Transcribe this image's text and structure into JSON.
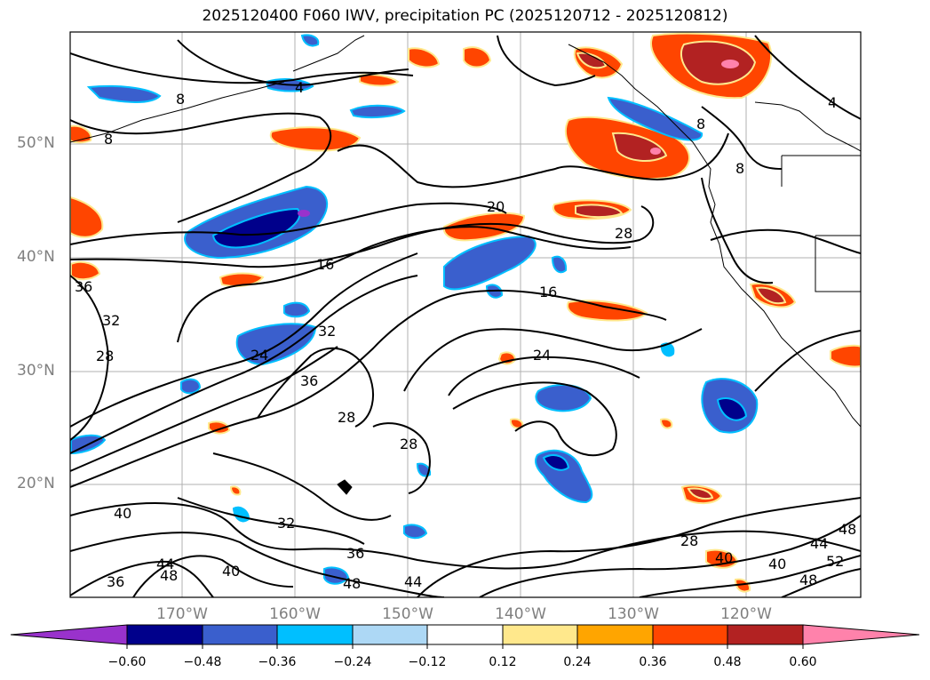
{
  "title": "2025120400 F060 IWV, precipitation PC (2025120712 - 2025120812)",
  "map": {
    "lat_labels": [
      "50°N",
      "40°N",
      "30°N",
      "20°N"
    ],
    "lon_labels": [
      "170°W",
      "160°W",
      "150°W",
      "140°W",
      "130°W",
      "120°W"
    ],
    "contour_labels": [
      "8",
      "4",
      "8",
      "20",
      "28",
      "16",
      "16",
      "36",
      "32",
      "28",
      "24",
      "32",
      "36",
      "24",
      "28",
      "28",
      "40",
      "32",
      "36",
      "40",
      "44",
      "48",
      "44",
      "36",
      "48",
      "28",
      "40",
      "40",
      "44",
      "48",
      "52",
      "48",
      "8",
      "8",
      "4"
    ]
  },
  "colorbar": {
    "tick_labels": [
      "−0.60",
      "−0.48",
      "−0.36",
      "−0.24",
      "−0.12",
      "0.12",
      "0.24",
      "0.36",
      "0.48",
      "0.60"
    ],
    "colors": [
      "#9932cc",
      "#00008b",
      "#3a5fcd",
      "#00bfff",
      "#add8f5",
      "#ffffff",
      "#ffe88c",
      "#ffa500",
      "#ff4500",
      "#b22222",
      "#ff82ab"
    ]
  }
}
